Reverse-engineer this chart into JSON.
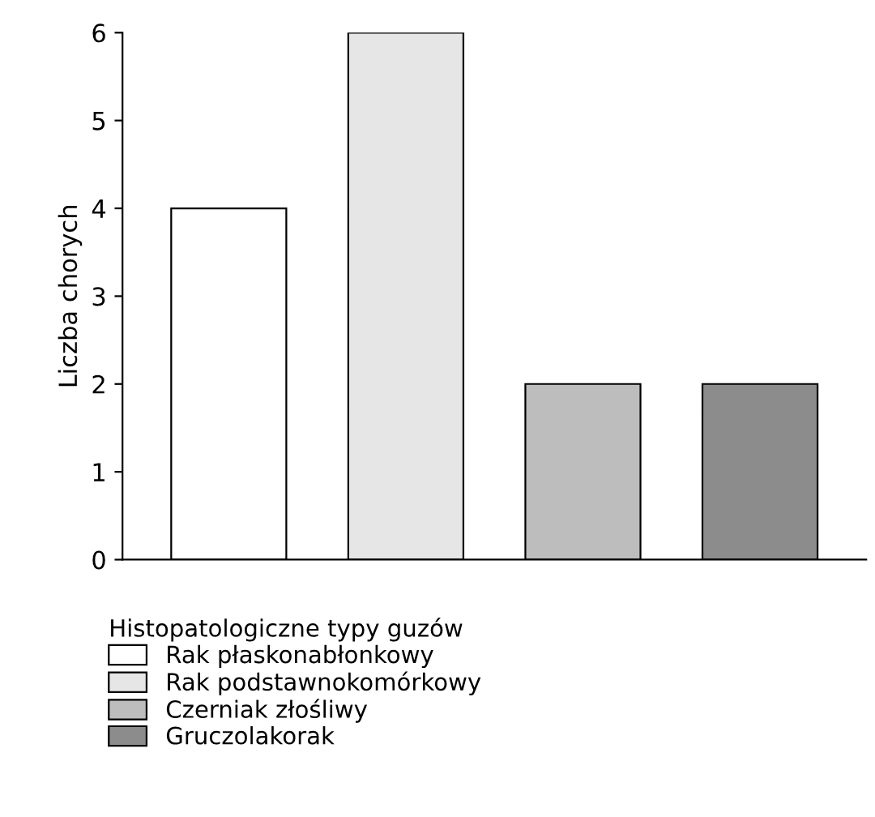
{
  "chart_data": {
    "type": "bar",
    "ylabel": "Liczba chorych",
    "legend_title": "Histopatologiczne typy guzów",
    "categories": [
      null,
      null,
      null,
      null
    ],
    "series": [
      {
        "name": "Rak płaskonabłonkowy",
        "color": "#ffffff",
        "values": [
          4,
          null,
          null,
          null
        ]
      },
      {
        "name": "Rak podstawnokomórkowy",
        "color": "#e6e6e6",
        "values": [
          null,
          6,
          null,
          null
        ]
      },
      {
        "name": "Czerniak złośliwy",
        "color": "#bdbdbd",
        "values": [
          null,
          null,
          2,
          null
        ]
      },
      {
        "name": "Gruczolakorak",
        "color": "#8c8c8c",
        "values": [
          null,
          null,
          null,
          2
        ]
      }
    ],
    "ylim": [
      0,
      6
    ],
    "yticks": [
      0,
      1,
      2,
      3,
      4,
      5,
      6
    ],
    "grid": false,
    "legend": "bottom left"
  }
}
